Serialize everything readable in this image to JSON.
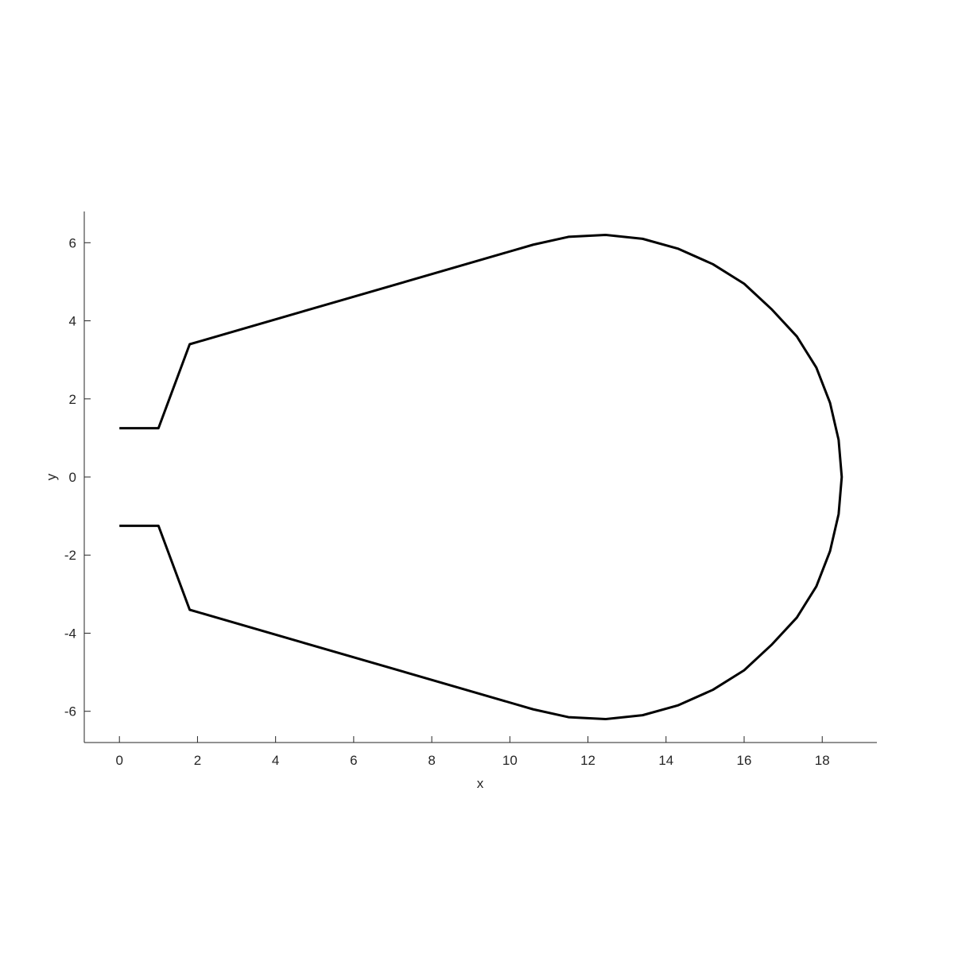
{
  "chart_data": {
    "type": "line",
    "title": "",
    "xlabel": "x",
    "ylabel": "y",
    "xlim": [
      -0.9,
      19.4
    ],
    "ylim": [
      -6.8,
      6.8
    ],
    "xticks": [
      0,
      2,
      4,
      6,
      8,
      10,
      12,
      14,
      16,
      18
    ],
    "yticks": [
      -6,
      -4,
      -2,
      0,
      2,
      4,
      6
    ],
    "grid": false,
    "legend": "none",
    "box": "left-bottom",
    "line_color": "#000000",
    "series": [
      {
        "x": [
          0,
          1.0,
          1.8,
          10.6,
          11.5,
          12.45,
          13.4,
          14.3,
          15.2,
          16.0,
          16.7,
          17.35,
          17.85,
          18.2,
          18.42,
          18.5,
          18.42,
          18.2,
          17.85,
          17.35,
          16.7,
          16.0,
          15.2,
          14.3,
          13.4,
          12.45,
          11.5,
          10.6,
          1.8,
          1.0,
          0
        ],
        "y": [
          1.25,
          1.25,
          3.4,
          5.95,
          6.15,
          6.2,
          6.1,
          5.85,
          5.45,
          4.95,
          4.3,
          3.6,
          2.8,
          1.9,
          0.95,
          0,
          -0.95,
          -1.9,
          -2.8,
          -3.6,
          -4.3,
          -4.95,
          -5.45,
          -5.85,
          -6.1,
          -6.2,
          -6.15,
          -5.95,
          -3.4,
          -1.25,
          -1.25
        ]
      }
    ]
  }
}
